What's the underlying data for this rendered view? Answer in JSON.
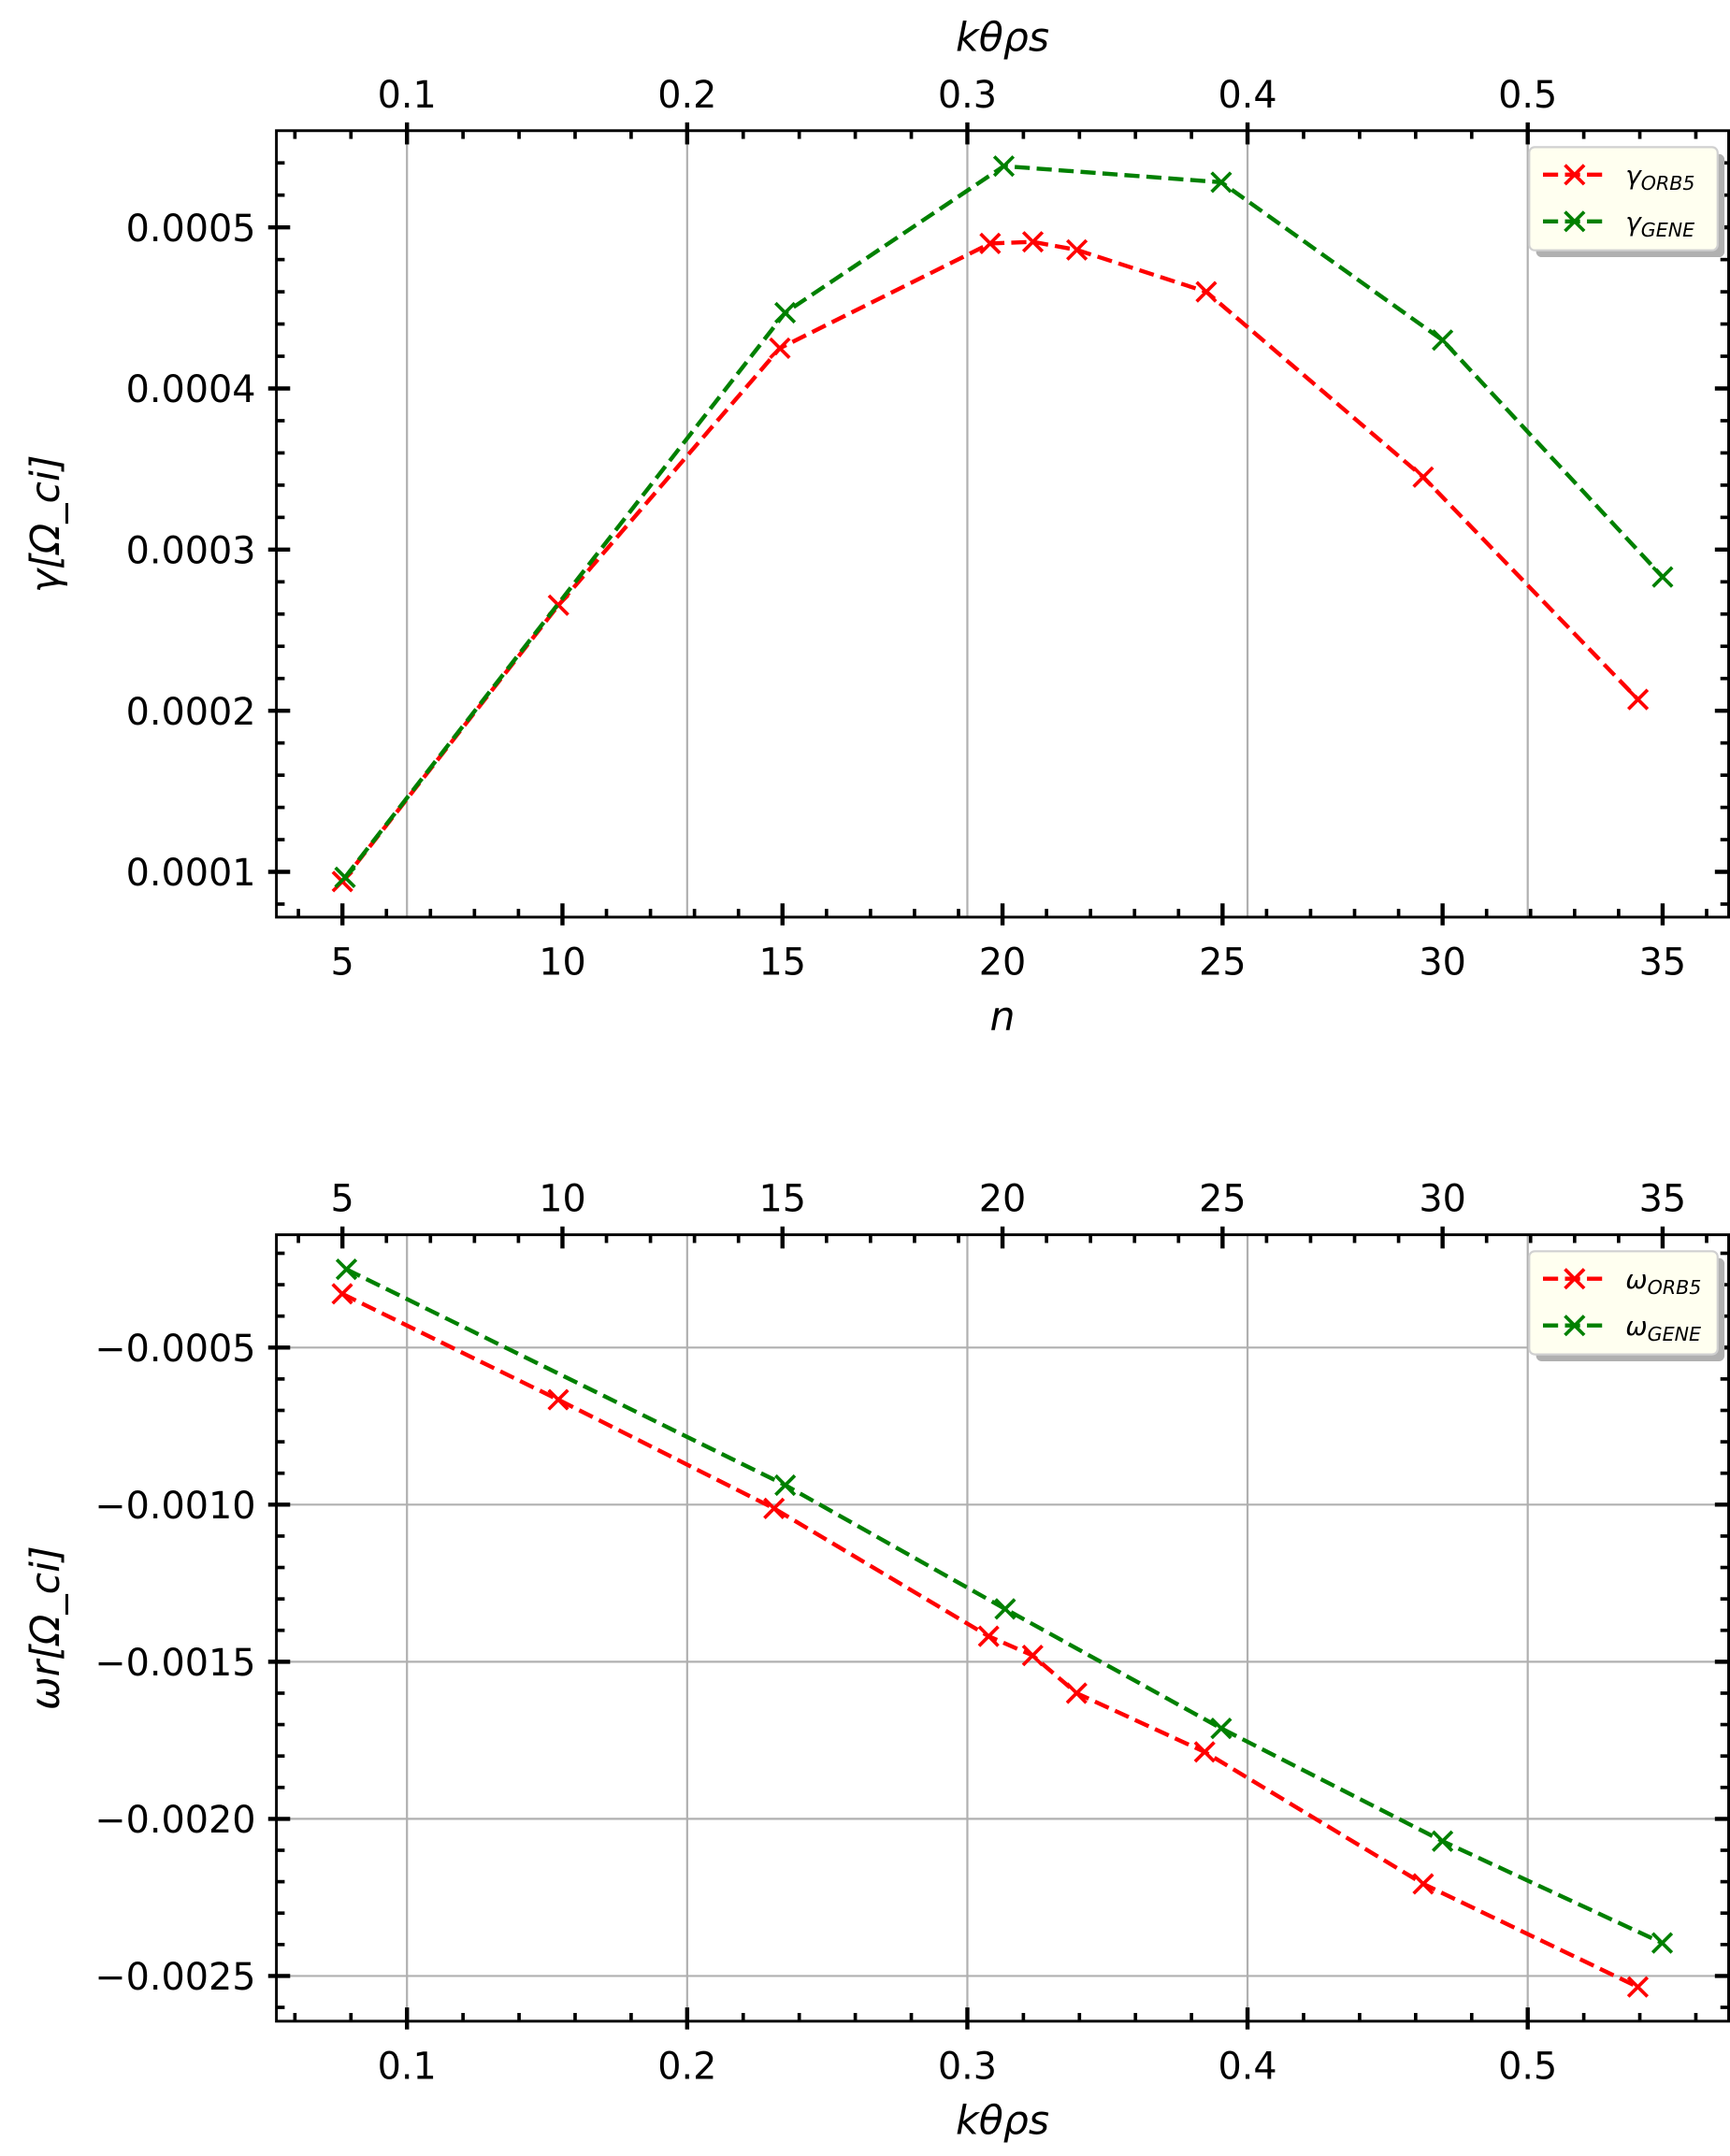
{
  "chart_data": [
    {
      "type": "line",
      "xlabel": "n",
      "ylabel": "γ[Ω_ci]",
      "secondary_xlabel": "kθρs",
      "xlim": [
        3.5,
        36.5
      ],
      "ylim": [
        7.19e-05,
        0.00056
      ],
      "secondary_xlim": [
        0.0534,
        0.5717
      ],
      "xticks": [
        5,
        10,
        15,
        20,
        25,
        30,
        35
      ],
      "yticks": [
        0.0001,
        0.0002,
        0.0003,
        0.0004,
        0.0005
      ],
      "ytick_labels": [
        "0.0001",
        "0.0002",
        "0.0003",
        "0.0004",
        "0.0005"
      ],
      "secondary_xticks": [
        0.1,
        0.2,
        0.3,
        0.4,
        0.5
      ],
      "grid": "vertical lines at secondary x ticks",
      "legend": "top-right",
      "series": [
        {
          "name": "γORB5",
          "base": "γ",
          "sub": "ORB5",
          "color": "#ff0000",
          "style": "dashed",
          "marker": "x",
          "x": [
            5,
            9.91,
            14.94,
            19.72,
            20.69,
            21.69,
            24.63,
            29.56,
            34.44
          ],
          "y": [
            9.4e-05,
            0.0002655,
            0.000425,
            0.00049,
            0.000491,
            0.000486,
            0.00046,
            0.000345,
            0.000207
          ]
        },
        {
          "name": "γGENE",
          "base": "γ",
          "sub": "GENE",
          "color": "#008000",
          "style": "dashed",
          "marker": "x",
          "x": [
            5.06,
            15.06,
            20.03,
            24.97,
            30.0,
            35.0
          ],
          "y": [
            9.66e-05,
            0.000447,
            0.000538,
            0.000528,
            0.00043,
            0.000283
          ]
        }
      ]
    },
    {
      "type": "line",
      "xlabel": "kθρs",
      "ylabel": "ωr[Ω_ci]",
      "secondary_xlabel": "",
      "xlim": [
        0.0534,
        0.5717
      ],
      "ylim": [
        -0.002644,
        -0.000141
      ],
      "secondary_xlim": [
        3.5,
        36.5
      ],
      "xticks": [
        0.1,
        0.2,
        0.3,
        0.4,
        0.5
      ],
      "yticks": [
        -0.0005,
        -0.001,
        -0.0015,
        -0.002,
        -0.0025
      ],
      "ytick_labels": [
        "−0.0005",
        "−0.0010",
        "−0.0015",
        "−0.0020",
        "−0.0025"
      ],
      "secondary_xticks": [
        5,
        10,
        15,
        20,
        25,
        30,
        35
      ],
      "grid": "both",
      "legend": "top-right",
      "series": [
        {
          "name": "ωORB5",
          "base": "ω",
          "sub": "ORB5",
          "color": "#ff0000",
          "style": "dashed",
          "marker": "x",
          "x": [
            0.0769,
            0.154,
            0.231,
            0.3076,
            0.3233,
            0.339,
            0.3847,
            0.4627,
            0.5393
          ],
          "y": [
            -0.000329,
            -0.000666,
            -0.001012,
            -0.001419,
            -0.00148,
            -0.0016,
            -0.001787,
            -0.002207,
            -0.002535
          ]
        },
        {
          "name": "ωGENE",
          "base": "ω",
          "sub": "GENE",
          "color": "#008000",
          "style": "dashed",
          "marker": "x",
          "x": [
            0.0784,
            0.235,
            0.3135,
            0.3906,
            0.4696,
            0.548
          ],
          "y": [
            -0.000251,
            -0.000938,
            -0.001332,
            -0.001712,
            -0.002071,
            -0.002395
          ]
        }
      ]
    }
  ]
}
